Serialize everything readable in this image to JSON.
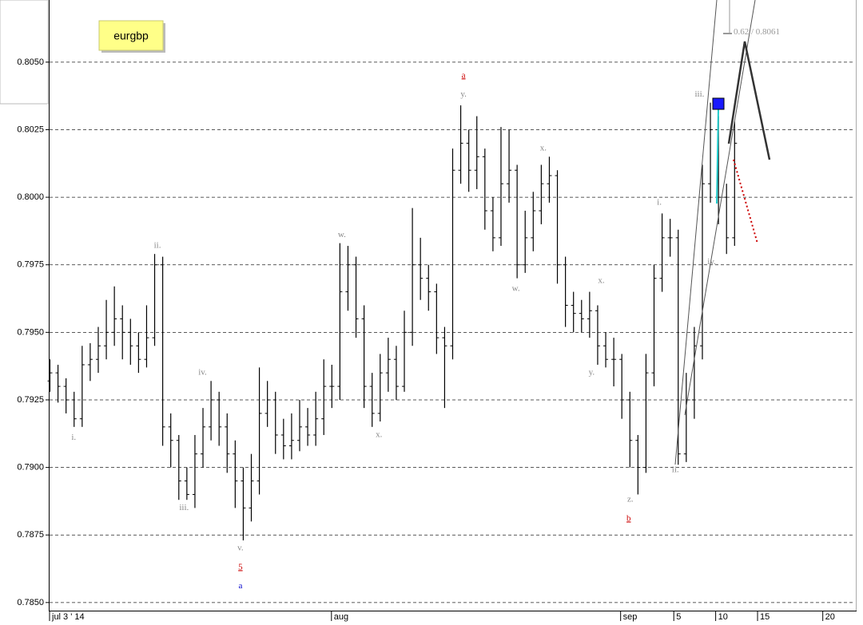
{
  "chart_data": {
    "type": "ohlc",
    "title": "eurgbp",
    "color": "#000000",
    "open": [
      0.7932,
      0.7935,
      0.793,
      0.7925,
      0.7918,
      0.7938,
      0.794,
      0.7945,
      0.795,
      0.7955,
      0.795,
      0.7945,
      0.794,
      0.7948,
      0.7975,
      0.7915,
      0.791,
      0.7895,
      0.789,
      0.7905,
      0.7915,
      0.7925,
      0.7915,
      0.7905,
      0.7895,
      0.7885,
      0.7895,
      0.792,
      0.7925,
      0.7912,
      0.7908,
      0.791,
      0.7915,
      0.7912,
      0.7918,
      0.793,
      0.793,
      0.7965,
      0.7975,
      0.7955,
      0.793,
      0.792,
      0.7935,
      0.794,
      0.793,
      0.795,
      0.7975,
      0.797,
      0.7965,
      0.7948,
      0.7945,
      0.801,
      0.802,
      0.801,
      0.8015,
      0.7995,
      0.7985,
      0.8005,
      0.801,
      0.7975,
      0.7985,
      0.7995,
      0.8005,
      0.8008,
      0.7975,
      0.796,
      0.7957,
      0.7955,
      0.7958,
      0.7945,
      0.794,
      0.794,
      0.7925,
      0.791,
      0.79,
      0.7935,
      0.797,
      0.7985,
      0.7985,
      0.7905,
      0.7925,
      0.7945,
      0.8005,
      0.8025,
      0.8,
      0.7985
    ],
    "high": [
      0.794,
      0.7938,
      0.7933,
      0.7928,
      0.7945,
      0.7946,
      0.7952,
      0.7962,
      0.7967,
      0.796,
      0.7955,
      0.795,
      0.796,
      0.7979,
      0.7978,
      0.792,
      0.7912,
      0.79,
      0.7912,
      0.7922,
      0.7932,
      0.7928,
      0.792,
      0.791,
      0.79,
      0.7905,
      0.7937,
      0.7932,
      0.7928,
      0.7918,
      0.792,
      0.7925,
      0.7922,
      0.7928,
      0.794,
      0.7938,
      0.7983,
      0.7982,
      0.7978,
      0.796,
      0.7935,
      0.7942,
      0.7948,
      0.7945,
      0.7958,
      0.7996,
      0.7985,
      0.7975,
      0.7968,
      0.7952,
      0.8018,
      0.8034,
      0.8025,
      0.803,
      0.8018,
      0.8,
      0.8026,
      0.8025,
      0.8012,
      0.7995,
      0.8002,
      0.8012,
      0.8015,
      0.801,
      0.7978,
      0.7965,
      0.7962,
      0.7965,
      0.796,
      0.795,
      0.7948,
      0.7942,
      0.7928,
      0.7912,
      0.7942,
      0.7975,
      0.7994,
      0.7992,
      0.7988,
      0.7935,
      0.7952,
      0.8012,
      0.8035,
      0.803,
      0.8005,
      0.8028
    ],
    "low": [
      0.7928,
      0.7924,
      0.792,
      0.7915,
      0.7915,
      0.7932,
      0.7935,
      0.794,
      0.7945,
      0.794,
      0.7938,
      0.7935,
      0.7937,
      0.7945,
      0.7908,
      0.79,
      0.7888,
      0.7888,
      0.7885,
      0.79,
      0.791,
      0.7908,
      0.7898,
      0.7885,
      0.7873,
      0.788,
      0.789,
      0.7915,
      0.7905,
      0.7903,
      0.7903,
      0.7906,
      0.7908,
      0.7908,
      0.7912,
      0.7922,
      0.7925,
      0.7958,
      0.7948,
      0.7922,
      0.7915,
      0.7917,
      0.7928,
      0.7925,
      0.7928,
      0.7945,
      0.7962,
      0.7958,
      0.7942,
      0.7922,
      0.794,
      0.8005,
      0.8002,
      0.8003,
      0.7988,
      0.798,
      0.7982,
      0.7998,
      0.797,
      0.7972,
      0.798,
      0.799,
      0.7998,
      0.7968,
      0.7952,
      0.795,
      0.795,
      0.7948,
      0.7938,
      0.7937,
      0.793,
      0.7918,
      0.79,
      0.789,
      0.7898,
      0.793,
      0.7965,
      0.7978,
      0.7901,
      0.7902,
      0.7918,
      0.794,
      0.7998,
      0.799,
      0.7979,
      0.7982
    ],
    "close": [
      0.7935,
      0.793,
      0.7925,
      0.7918,
      0.7938,
      0.794,
      0.7945,
      0.795,
      0.7955,
      0.795,
      0.7945,
      0.794,
      0.7948,
      0.7975,
      0.7915,
      0.791,
      0.7895,
      0.789,
      0.7905,
      0.7915,
      0.7925,
      0.7915,
      0.7905,
      0.7895,
      0.7885,
      0.7895,
      0.792,
      0.7925,
      0.7912,
      0.7908,
      0.791,
      0.7915,
      0.7912,
      0.7918,
      0.793,
      0.793,
      0.7965,
      0.7975,
      0.7955,
      0.793,
      0.792,
      0.7935,
      0.794,
      0.793,
      0.795,
      0.7975,
      0.797,
      0.7965,
      0.7948,
      0.7945,
      0.801,
      0.802,
      0.801,
      0.8015,
      0.7995,
      0.7985,
      0.8005,
      0.801,
      0.7975,
      0.7985,
      0.7995,
      0.8005,
      0.8008,
      0.7975,
      0.796,
      0.7957,
      0.7955,
      0.7958,
      0.7945,
      0.794,
      0.794,
      0.7925,
      0.791,
      0.79,
      0.7935,
      0.797,
      0.7985,
      0.7985,
      0.7905,
      0.7925,
      0.7945,
      0.8005,
      0.8025,
      0.8,
      0.7985,
      0.802
    ],
    "xlim": [
      0,
      100
    ],
    "xticks": [
      {
        "value": 0,
        "label": "jul 3 ' 14"
      },
      {
        "value": 35,
        "label": "aug"
      },
      {
        "value": 70.9,
        "label": "sep"
      },
      {
        "value": 77.5,
        "label": "5"
      },
      {
        "value": 82.7,
        "label": "10"
      },
      {
        "value": 87.9,
        "label": "15"
      },
      {
        "value": 96,
        "label": "20"
      }
    ],
    "ylim": [
      0.7847,
      0.8073
    ],
    "yticks": [
      {
        "value": 0.785,
        "label": "0.7850"
      },
      {
        "value": 0.7875,
        "label": "0.7875"
      },
      {
        "value": 0.79,
        "label": "0.7900"
      },
      {
        "value": 0.7925,
        "label": "0.7925"
      },
      {
        "value": 0.795,
        "label": "0.7950"
      },
      {
        "value": 0.7975,
        "label": "0.7975"
      },
      {
        "value": 0.8,
        "label": "0.8000"
      },
      {
        "value": 0.8025,
        "label": "0.8025"
      },
      {
        "value": 0.805,
        "label": "0.8050"
      }
    ],
    "grid": true,
    "annotations": [
      {
        "text": "i.",
        "x": 3,
        "y": 0.7911,
        "color": "#888888"
      },
      {
        "text": "ii.",
        "x": 13.4,
        "y": 0.7982,
        "color": "#888888"
      },
      {
        "text": "iii.",
        "x": 16.7,
        "y": 0.7885,
        "color": "#888888"
      },
      {
        "text": "iv.",
        "x": 19,
        "y": 0.7935,
        "color": "#888888"
      },
      {
        "text": "v.",
        "x": 23.7,
        "y": 0.787,
        "color": "#888888"
      },
      {
        "text": "5",
        "x": 23.7,
        "y": 0.7863,
        "color": "#cc0000",
        "underline": true
      },
      {
        "text": "a",
        "x": 23.7,
        "y": 0.7856,
        "color": "#0000cc"
      },
      {
        "text": "w.",
        "x": 36.3,
        "y": 0.7986,
        "color": "#888888"
      },
      {
        "text": "x.",
        "x": 40.9,
        "y": 0.7912,
        "color": "#888888"
      },
      {
        "text": "a",
        "x": 51.4,
        "y": 0.8045,
        "color": "#cc0000",
        "underline": true
      },
      {
        "text": "y.",
        "x": 51.4,
        "y": 0.8038,
        "color": "#888888"
      },
      {
        "text": "w.",
        "x": 57.9,
        "y": 0.7966,
        "color": "#888888"
      },
      {
        "text": "x.",
        "x": 61.3,
        "y": 0.8018,
        "color": "#888888"
      },
      {
        "text": "x.",
        "x": 68.5,
        "y": 0.7969,
        "color": "#888888"
      },
      {
        "text": "y.",
        "x": 67.3,
        "y": 0.7935,
        "color": "#888888"
      },
      {
        "text": "z.",
        "x": 72.1,
        "y": 0.7888,
        "color": "#888888"
      },
      {
        "text": "b",
        "x": 71.9,
        "y": 0.7881,
        "color": "#cc0000",
        "underline": true
      },
      {
        "text": "i.",
        "x": 75.7,
        "y": 0.7998,
        "color": "#888888"
      },
      {
        "text": "ii.",
        "x": 77.7,
        "y": 0.7899,
        "color": "#888888"
      },
      {
        "text": "iii.",
        "x": 80.7,
        "y": 0.8038,
        "color": "#888888"
      },
      {
        "text": "iv.",
        "x": 82.2,
        "y": 0.7976,
        "color": "#888888"
      },
      {
        "text": "0.62 / 0.8061",
        "x": 87.8,
        "y": 0.8061,
        "color": "#999999"
      }
    ]
  }
}
